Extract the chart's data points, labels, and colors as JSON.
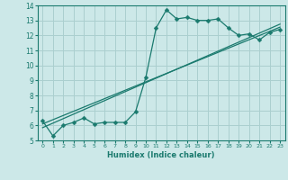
{
  "x": [
    0,
    1,
    2,
    3,
    4,
    5,
    6,
    7,
    8,
    9,
    10,
    11,
    12,
    13,
    14,
    15,
    16,
    17,
    18,
    19,
    20,
    21,
    22,
    23
  ],
  "y_main": [
    6.3,
    5.3,
    6.0,
    6.2,
    6.5,
    6.1,
    6.2,
    6.2,
    6.2,
    6.9,
    9.2,
    12.5,
    13.7,
    13.1,
    13.2,
    13.0,
    13.0,
    13.1,
    12.5,
    12.0,
    12.1,
    11.7,
    12.2,
    12.4
  ],
  "trend1_x": [
    0,
    23
  ],
  "trend1_y": [
    6.1,
    12.55
  ],
  "trend2_x": [
    0,
    23
  ],
  "trend2_y": [
    5.85,
    12.75
  ],
  "line_color": "#1a7a6e",
  "bg_color": "#cce8e8",
  "grid_color": "#aacfcf",
  "xlabel": "Humidex (Indice chaleur)",
  "ylim": [
    5,
    14
  ],
  "xlim": [
    -0.5,
    23.5
  ],
  "yticks": [
    5,
    6,
    7,
    8,
    9,
    10,
    11,
    12,
    13,
    14
  ],
  "xticks": [
    0,
    1,
    2,
    3,
    4,
    5,
    6,
    7,
    8,
    9,
    10,
    11,
    12,
    13,
    14,
    15,
    16,
    17,
    18,
    19,
    20,
    21,
    22,
    23
  ],
  "xlabel_fontsize": 6.0,
  "tick_fontsize_x": 4.5,
  "tick_fontsize_y": 5.5,
  "marker_size": 2.5,
  "line_width": 0.9
}
